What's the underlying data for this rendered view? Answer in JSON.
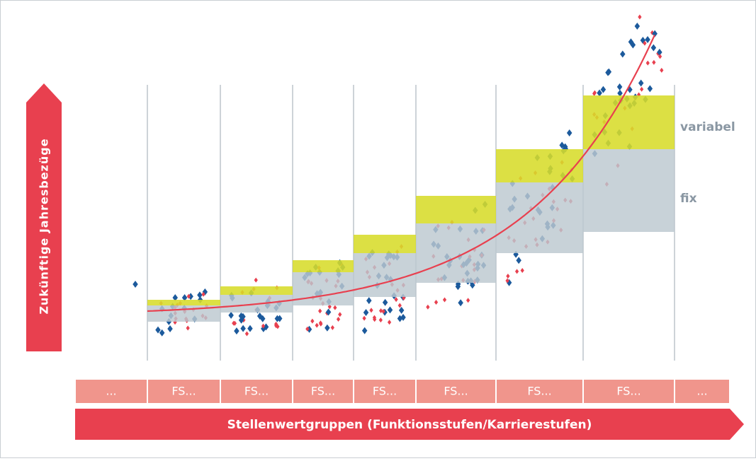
{
  "y_axis_label": "Zukünftige Jahresbezüge",
  "x_axis_label": "Stellenwertgruppen (Funktionsstufen/Karrierestufen)",
  "levels": [
    "...",
    "FS...",
    "FS...",
    "FS...",
    "FS...",
    "FS...",
    "FS...",
    "FS...",
    "..."
  ],
  "band_labels": {
    "variable": "variabel",
    "fixed": "fix"
  }
}
